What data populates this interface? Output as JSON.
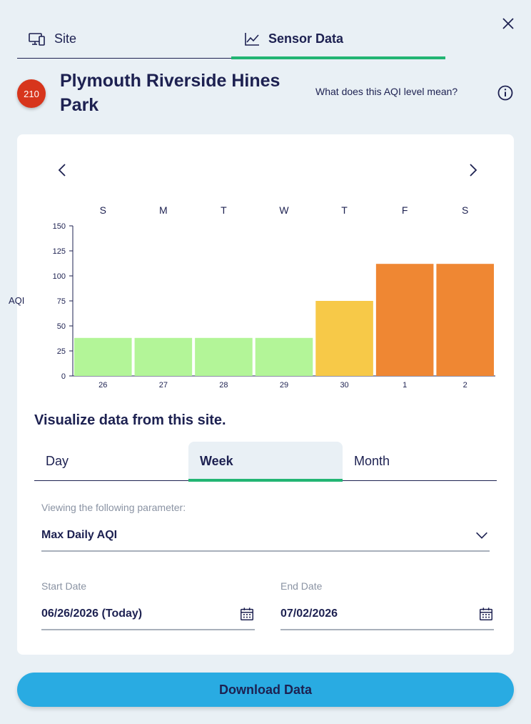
{
  "tabs": {
    "site_label": "Site",
    "sensor_label": "Sensor Data"
  },
  "header": {
    "aqi_value": "210",
    "aqi_color": "#d7351c",
    "site_name": "Plymouth Riverside Hines Park",
    "aqi_help_link": "What does this AQI level mean?"
  },
  "icons": {
    "close": "close-icon",
    "info": "info-icon",
    "prev": "chevron-left-icon",
    "next": "chevron-right-icon",
    "dropdown": "chevron-down-icon",
    "calendar": "calendar-icon",
    "site": "devices-icon",
    "sensor": "line-chart-icon"
  },
  "chart_data": {
    "type": "bar",
    "day_initials": [
      "S",
      "M",
      "T",
      "W",
      "T",
      "F",
      "S"
    ],
    "categories": [
      "26",
      "27",
      "28",
      "29",
      "30",
      "1",
      "2"
    ],
    "values": [
      38,
      38,
      38,
      38,
      75,
      112,
      112
    ],
    "colors": [
      "#b3f598",
      "#b3f598",
      "#b3f598",
      "#b3f598",
      "#f7c948",
      "#ef8733",
      "#ef8733"
    ],
    "ylabel": "AQI",
    "ylim": [
      0,
      150
    ],
    "yticks": [
      "0",
      "25",
      "50",
      "75",
      "100",
      "125",
      "150"
    ],
    "grid": false
  },
  "visualize": {
    "title": "Visualize data from this site.",
    "periods": [
      "Day",
      "Week",
      "Month"
    ],
    "selected": "Week"
  },
  "parameter": {
    "label": "Viewing the following parameter:",
    "value": "Max Daily AQI"
  },
  "dates": {
    "start_label": "Start Date",
    "start_value": "06/26/2026 (Today)",
    "end_label": "End Date",
    "end_value": "07/02/2026"
  },
  "download_label": "Download Data",
  "colors": {
    "accent": "#22b573",
    "navy": "#1d2151",
    "button": "#29abe2"
  }
}
